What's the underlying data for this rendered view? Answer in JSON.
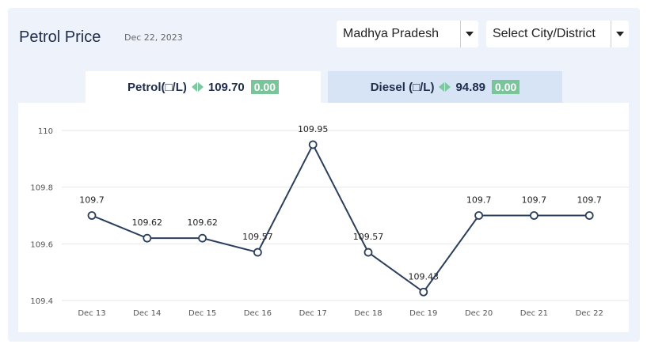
{
  "header": {
    "title": "Petrol Price",
    "date": "Dec 22, 2023",
    "state_select": "Madhya Pradesh",
    "city_select": "Select City/District"
  },
  "tabs": [
    {
      "fuel": "Petrol",
      "unit_label": "Petrol(□/L)",
      "price": "109.70",
      "change": "0.00",
      "active": true
    },
    {
      "fuel": "Diesel",
      "unit_label": "Diesel (□/L)",
      "price": "94.89",
      "change": "0.00",
      "active": false
    }
  ],
  "icons": {
    "change_indicator": "left-right-triangles-icon",
    "dropdown": "caret-down-icon"
  },
  "colors": {
    "panel_bg": "#eef3fb",
    "line": "#2b3f5c",
    "badge": "#79c59a",
    "indicator": "#7cc8a1",
    "inactive_tab": "#d6e4f5"
  },
  "chart_data": {
    "type": "line",
    "categories": [
      "Dec 13",
      "Dec 14",
      "Dec 15",
      "Dec 16",
      "Dec 17",
      "Dec 18",
      "Dec 19",
      "Dec 20",
      "Dec 21",
      "Dec 22"
    ],
    "values": [
      109.7,
      109.62,
      109.62,
      109.57,
      109.95,
      109.57,
      109.43,
      109.7,
      109.7,
      109.7
    ],
    "data_labels": [
      "109.7",
      "109.62",
      "109.62",
      "109.57",
      "109.95",
      "109.57",
      "109.43",
      "109.7",
      "109.7",
      "109.7"
    ],
    "y_ticks": [
      "110",
      "109.8",
      "109.6",
      "109.4"
    ],
    "ylim": [
      109.4,
      110
    ],
    "grid": true,
    "title": "",
    "xlabel": "",
    "ylabel": ""
  }
}
